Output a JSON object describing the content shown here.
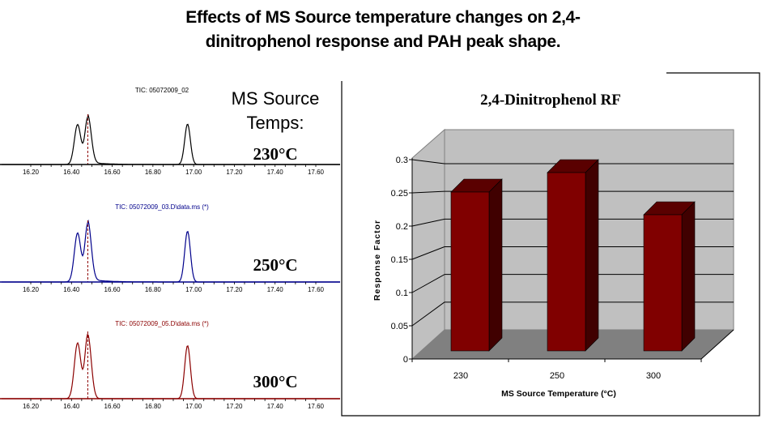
{
  "title_line1": "Effects of MS Source temperature changes on 2,4-",
  "title_line2": "dinitrophenol response and PAH peak shape.",
  "temps_label_line1": "MS Source",
  "temps_label_line2": "Temps:",
  "chart_data": [
    {
      "type": "line",
      "title": "TIC: 05072009_02",
      "temp_label": "230°C",
      "color": "#000000",
      "xticks": [
        "16.20",
        "16.40",
        "16.60",
        "16.80",
        "17.00",
        "17.20",
        "17.40",
        "17.60"
      ],
      "xlim": [
        16.2,
        17.6
      ],
      "marker_rt": 16.48,
      "peaks": [
        {
          "rt": 16.43,
          "height": 0.85,
          "width": 0.016
        },
        {
          "rt": 16.48,
          "height": 1.0,
          "width": 0.014
        },
        {
          "rt": 16.97,
          "height": 0.86,
          "width": 0.014
        }
      ]
    },
    {
      "type": "line",
      "title": "TIC: 05072009_03.D\\data.ms (*)",
      "temp_label": "250°C",
      "color": "#00008b",
      "xticks": [
        "16.20",
        "16.40",
        "16.60",
        "16.80",
        "17.00",
        "17.20",
        "17.40",
        "17.60"
      ],
      "xlim": [
        16.2,
        17.6
      ],
      "marker_rt": 16.48,
      "peaks": [
        {
          "rt": 16.43,
          "height": 0.84,
          "width": 0.016
        },
        {
          "rt": 16.48,
          "height": 1.0,
          "width": 0.014
        },
        {
          "rt": 16.97,
          "height": 0.87,
          "width": 0.014
        }
      ]
    },
    {
      "type": "line",
      "title": "TIC: 05072009_05.D\\data.ms (*)",
      "temp_label": "300°C",
      "color": "#8b0000",
      "xticks": [
        "16.20",
        "16.40",
        "16.60",
        "16.80",
        "17.00",
        "17.20",
        "17.40",
        "17.60"
      ],
      "xlim": [
        16.2,
        17.6
      ],
      "marker_rt": 16.48,
      "peaks": [
        {
          "rt": 16.43,
          "height": 0.87,
          "width": 0.016
        },
        {
          "rt": 16.48,
          "height": 1.0,
          "width": 0.014
        },
        {
          "rt": 16.97,
          "height": 0.83,
          "width": 0.014
        }
      ]
    },
    {
      "type": "bar",
      "title": "2,4-Dinitrophenol RF",
      "categories": [
        "230",
        "250",
        "300"
      ],
      "values": [
        0.245,
        0.275,
        0.21
      ],
      "xlabel": "MS Source Temperature (°C)",
      "ylabel": "Response Factor",
      "ylim": [
        0,
        0.3
      ],
      "yticks": [
        "0",
        "0.05",
        "0.1",
        "0.15",
        "0.2",
        "0.25",
        "0.3"
      ],
      "grid": true,
      "bar_color": "#800000",
      "wall_color": "#c0c0c0",
      "floor_color": "#808080"
    }
  ]
}
